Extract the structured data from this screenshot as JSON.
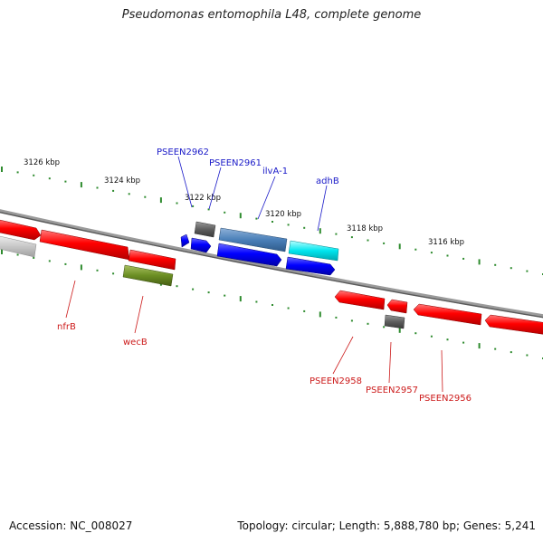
{
  "title": "Pseudomonas entomophila L48, complete genome",
  "footer": {
    "accession": "Accession: NC_008027",
    "summary": "Topology: circular; Length: 5,888,780 bp; Genes: 5,241"
  },
  "colors": {
    "forward_label": "#1a1ac8",
    "reverse_label": "#cc1a1a",
    "tick": "#2e8b2e",
    "backbone": "#888888"
  },
  "ruler_labels": [
    "3126 kbp",
    "3124 kbp",
    "3122 kbp",
    "3120 kbp",
    "3118 kbp",
    "3116 kbp"
  ],
  "forward_gene_labels": [
    "PSEEN2962",
    "PSEEN2961",
    "ilvA-1",
    "adhB"
  ],
  "reverse_gene_labels": [
    "nfrB",
    "wecB",
    "PSEEN2958",
    "PSEEN2957",
    "PSEEN2956"
  ]
}
